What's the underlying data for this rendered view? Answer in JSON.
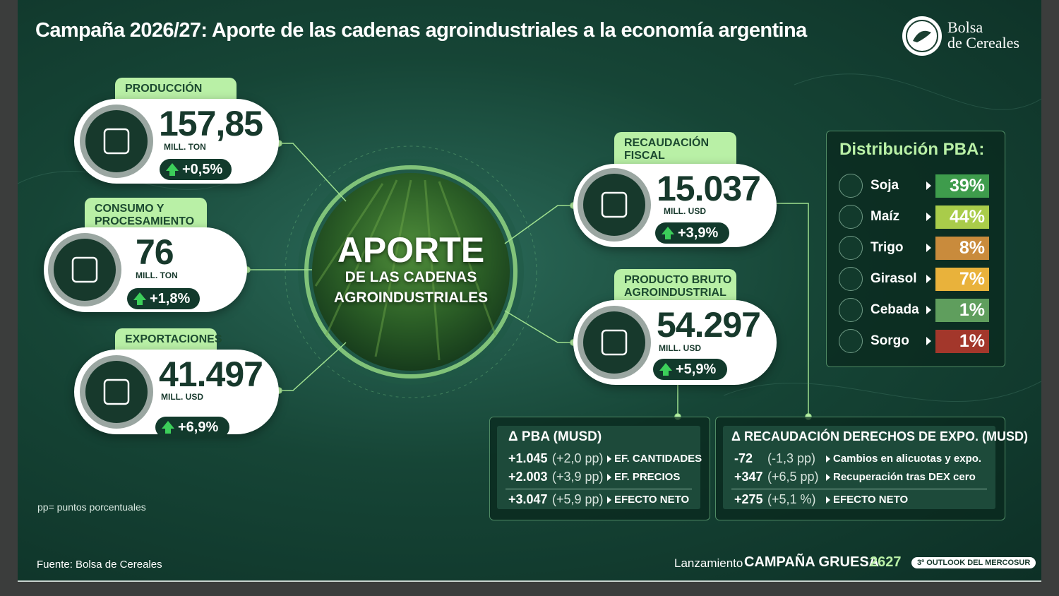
{
  "header": {
    "title": "Campaña 2026/27: Aporte de las cadenas agroindustriales a la economía argentina",
    "logo": [
      "Bolsa",
      "de Cereales"
    ]
  },
  "cards": [
    {
      "label": [
        "PRODUCCIÓN"
      ],
      "value": "157,85",
      "unit": "MILL. TON",
      "change": "+0,5%"
    },
    {
      "label": [
        "CONSUMO Y",
        "PROCESAMIENTO"
      ],
      "value": "76",
      "unit": "MILL. TON",
      "change": "+1,8%"
    },
    {
      "label": [
        "EXPORTACIONES"
      ],
      "value": "41.497",
      "unit": "MILL. USD",
      "change": "+6,9%"
    },
    {
      "label": [
        "RECAUDACIÓN",
        "FISCAL"
      ],
      "value": "15.037",
      "unit": "MILL. USD",
      "change": "+3,9%"
    },
    {
      "label": [
        "PRODUCTO BRUTO",
        "AGROINDUSTRIAL"
      ],
      "value": "54.297",
      "unit": "MILL. USD",
      "change": "+5,9%"
    }
  ],
  "center": [
    "APORTE",
    "DE LAS CADENAS",
    "AGROINDUSTRIALES"
  ],
  "distribution": {
    "title": "Distribución PBA:",
    "rows": [
      {
        "name": "Soja",
        "share": "39%"
      },
      {
        "name": "Maíz",
        "share": "44%"
      },
      {
        "name": "Trigo",
        "share": "8%"
      },
      {
        "name": "Girasol",
        "share": "7%"
      },
      {
        "name": "Cebada",
        "share": "1%"
      },
      {
        "name": "Sorgo",
        "share": "1%"
      }
    ]
  },
  "pba_box": {
    "title": "Δ PBA (MUSD)",
    "rows": [
      [
        "+1.045",
        "(+2,0 pp)",
        "EF. CANTIDADES"
      ],
      [
        "+2.003",
        "(+3,9 pp)",
        "EF. PRECIOS"
      ],
      [
        "+3.047",
        "(+5,9 pp)",
        "EFECTO NETO"
      ]
    ]
  },
  "recaudacion_box": {
    "title": "Δ RECAUDACIÓN DERECHOS DE EXPO. (MUSD)",
    "rows": [
      [
        "-72",
        "(-1,3 pp)",
        "Cambios en alicuotas y expo."
      ],
      [
        "+347",
        "(+6,5 pp)",
        "Recuperación tras DEX cero"
      ],
      [
        "+275",
        "(+5,1 %)",
        "EFECTO NETO"
      ]
    ]
  },
  "note": "pp= puntos porcentuales",
  "footer": {
    "source": "Fuente: Bolsa de Cereales",
    "launch": "Lanzamiento",
    "campaign": "CAMPAÑA GRUESA",
    "edition": "2627",
    "badge": "3º OUTLOOK DEL MERCOSUR"
  }
}
